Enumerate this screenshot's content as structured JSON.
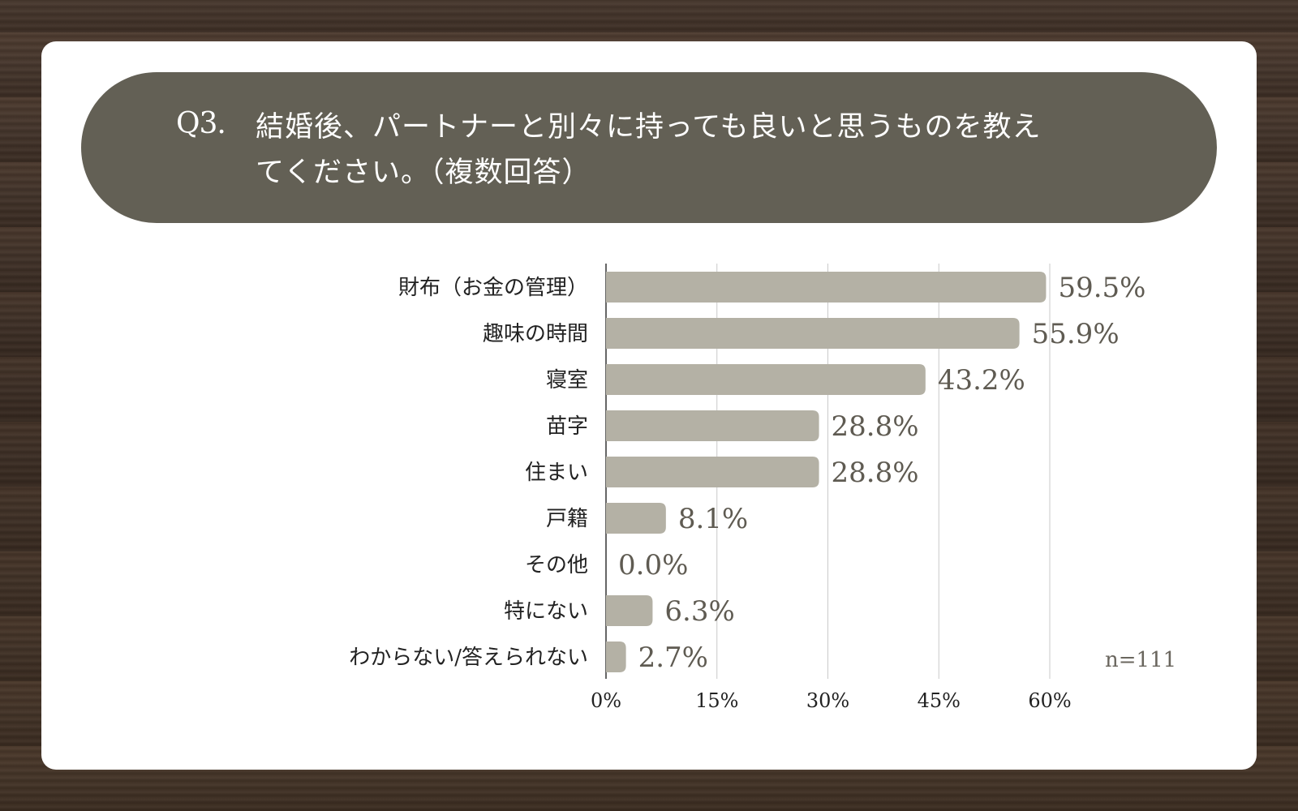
{
  "question": {
    "number": "Q3.",
    "text": "結婚後、パートナーと別々に持っても良いと思うものを教えてください。（複数回答）"
  },
  "sample_size": "n=111",
  "colors": {
    "bar": "#b4b1a5",
    "title_bg": "#636055",
    "value_text": "#5f5b52"
  },
  "chart_data": {
    "type": "bar",
    "orientation": "horizontal",
    "title": "結婚後、パートナーと別々に持っても良いと思うものを教えてください。（複数回答）",
    "categories": [
      "財布（お金の管理）",
      "趣味の時間",
      "寝室",
      "苗字",
      "住まい",
      "戸籍",
      "その他",
      "特にない",
      "わからない/答えられない"
    ],
    "values": [
      59.5,
      55.9,
      43.2,
      28.8,
      28.8,
      8.1,
      0.0,
      6.3,
      2.7
    ],
    "value_labels": [
      "59.5%",
      "55.9%",
      "43.2%",
      "28.8%",
      "28.8%",
      "8.1%",
      "0.0%",
      "6.3%",
      "2.7%"
    ],
    "xlim": [
      0,
      60
    ],
    "xticks": [
      0,
      15,
      30,
      45,
      60
    ],
    "xtick_labels": [
      "0%",
      "15%",
      "30%",
      "45%",
      "60%"
    ],
    "grid": true,
    "xlabel": "",
    "ylabel": ""
  }
}
